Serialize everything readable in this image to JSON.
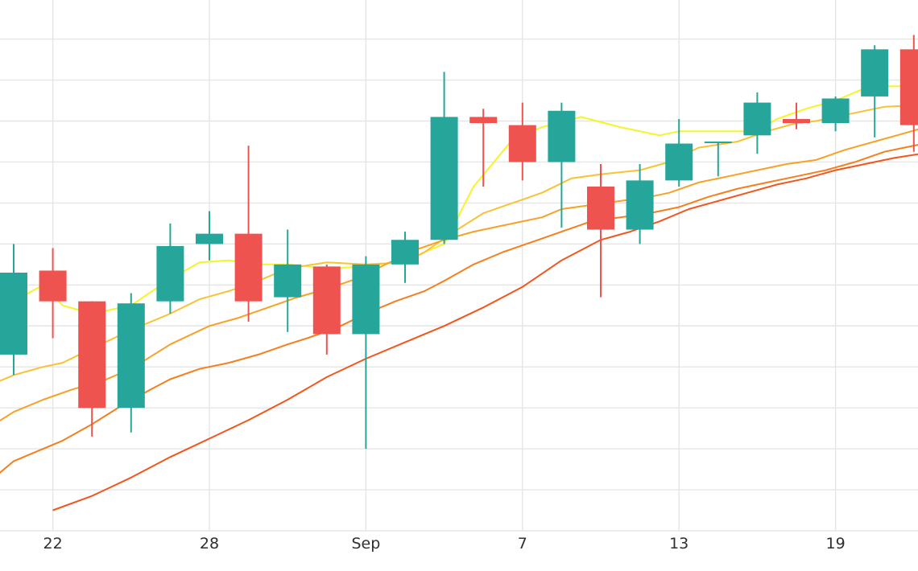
{
  "chart_data": {
    "type": "candlestick",
    "grid": true,
    "x_tick_labels": [
      {
        "label": "22",
        "day": 1
      },
      {
        "label": "28",
        "day": 5
      },
      {
        "label": "Sep",
        "day": 9
      },
      {
        "label": "7",
        "day": 13
      },
      {
        "label": "13",
        "day": 17
      },
      {
        "label": "19",
        "day": 21
      }
    ],
    "colors": {
      "up": "#26a69a",
      "down": "#ef5350",
      "grid": "#e5e5e5",
      "ma": [
        "#f7f32a",
        "#f9c235",
        "#f7a125",
        "#f57f1f",
        "#f2561d"
      ]
    },
    "candles": [
      {
        "day": 0,
        "open": 14.3,
        "high": 17.0,
        "low": 13.8,
        "close": 16.3
      },
      {
        "day": 1,
        "open": 16.35,
        "high": 16.9,
        "low": 14.7,
        "close": 15.6
      },
      {
        "day": 2,
        "open": 15.6,
        "high": 15.6,
        "low": 12.3,
        "close": 13.0
      },
      {
        "day": 3,
        "open": 13.0,
        "high": 15.8,
        "low": 12.4,
        "close": 15.55
      },
      {
        "day": 4,
        "open": 15.6,
        "high": 17.5,
        "low": 15.3,
        "close": 16.95
      },
      {
        "day": 5,
        "open": 17.0,
        "high": 17.8,
        "low": 16.6,
        "close": 17.25
      },
      {
        "day": 6,
        "open": 17.25,
        "high": 19.4,
        "low": 15.1,
        "close": 15.6
      },
      {
        "day": 7,
        "open": 15.7,
        "high": 17.35,
        "low": 14.85,
        "close": 16.5
      },
      {
        "day": 8,
        "open": 16.45,
        "high": 16.5,
        "low": 14.3,
        "close": 14.8
      },
      {
        "day": 9,
        "open": 14.8,
        "high": 16.7,
        "low": 12.0,
        "close": 16.5
      },
      {
        "day": 10,
        "open": 16.5,
        "high": 17.3,
        "low": 16.05,
        "close": 17.1
      },
      {
        "day": 11,
        "open": 17.1,
        "high": 21.2,
        "low": 17.0,
        "close": 20.1
      },
      {
        "day": 12,
        "open": 20.1,
        "high": 20.3,
        "low": 18.4,
        "close": 19.95
      },
      {
        "day": 13,
        "open": 19.9,
        "high": 20.45,
        "low": 18.55,
        "close": 19.0
      },
      {
        "day": 14,
        "open": 19.0,
        "high": 20.45,
        "low": 17.4,
        "close": 20.25
      },
      {
        "day": 15,
        "open": 18.4,
        "high": 18.95,
        "low": 15.7,
        "close": 17.35
      },
      {
        "day": 16,
        "open": 17.35,
        "high": 18.95,
        "low": 17.0,
        "close": 18.55
      },
      {
        "day": 17,
        "open": 18.55,
        "high": 20.05,
        "low": 18.4,
        "close": 19.45
      },
      {
        "day": 18,
        "open": 19.5,
        "high": 19.5,
        "low": 18.65,
        "close": 19.5
      },
      {
        "day": 19,
        "open": 19.65,
        "high": 20.7,
        "low": 19.2,
        "close": 20.45
      },
      {
        "day": 20,
        "open": 20.05,
        "high": 20.45,
        "low": 19.8,
        "close": 19.95
      },
      {
        "day": 21,
        "open": 19.95,
        "high": 20.6,
        "low": 19.75,
        "close": 20.55
      },
      {
        "day": 22,
        "open": 20.6,
        "high": 21.85,
        "low": 19.6,
        "close": 21.75
      },
      {
        "day": 23,
        "open": 21.75,
        "high": 22.1,
        "low": 19.25,
        "close": 19.9
      }
    ],
    "moving_averages": [
      {
        "values": [
          [
            -1.5,
            14.8
          ],
          [
            0,
            15.6
          ],
          [
            0.75,
            16.0
          ],
          [
            1.25,
            15.5
          ],
          [
            2,
            15.3
          ],
          [
            3,
            15.5
          ],
          [
            4,
            16.15
          ],
          [
            4.75,
            16.55
          ],
          [
            5.5,
            16.6
          ],
          [
            6.25,
            16.5
          ],
          [
            7,
            16.5
          ],
          [
            8,
            16.4
          ],
          [
            9,
            16.45
          ],
          [
            10,
            16.6
          ],
          [
            11,
            17.0
          ],
          [
            11.75,
            18.4
          ],
          [
            12.75,
            19.55
          ],
          [
            13.5,
            19.85
          ],
          [
            14.5,
            20.1
          ],
          [
            15.5,
            19.85
          ],
          [
            16.5,
            19.65
          ],
          [
            17,
            19.75
          ],
          [
            17.5,
            19.75
          ],
          [
            18.5,
            19.75
          ],
          [
            19,
            19.75
          ],
          [
            19.5,
            20.05
          ],
          [
            20.25,
            20.3
          ],
          [
            21,
            20.5
          ],
          [
            21.75,
            20.8
          ],
          [
            22.25,
            20.85
          ],
          [
            22.75,
            20.85
          ],
          [
            23.5,
            20.9
          ]
        ]
      },
      {
        "values": [
          [
            -1.5,
            13.0
          ],
          [
            -0.5,
            13.6
          ],
          [
            0,
            13.8
          ],
          [
            0.75,
            14.0
          ],
          [
            1.25,
            14.1
          ],
          [
            2,
            14.45
          ],
          [
            3,
            14.9
          ],
          [
            4,
            15.3
          ],
          [
            4.75,
            15.65
          ],
          [
            5.5,
            15.85
          ],
          [
            6.25,
            16.1
          ],
          [
            7,
            16.4
          ],
          [
            8,
            16.55
          ],
          [
            9,
            16.5
          ],
          [
            10,
            16.55
          ],
          [
            10.5,
            16.8
          ],
          [
            11.25,
            17.3
          ],
          [
            12,
            17.75
          ],
          [
            12.75,
            18.0
          ],
          [
            13.5,
            18.25
          ],
          [
            14.25,
            18.6
          ],
          [
            15,
            18.7
          ],
          [
            16,
            18.8
          ],
          [
            16.75,
            19.0
          ],
          [
            17.5,
            19.35
          ],
          [
            18.5,
            19.5
          ],
          [
            19.25,
            19.75
          ],
          [
            20,
            19.95
          ],
          [
            20.5,
            20.0
          ],
          [
            21,
            20.1
          ],
          [
            21.75,
            20.25
          ],
          [
            22.25,
            20.35
          ],
          [
            23.5,
            20.4
          ]
        ]
      },
      {
        "values": [
          [
            -1.5,
            12.05
          ],
          [
            -0.5,
            12.6
          ],
          [
            0,
            12.9
          ],
          [
            0.75,
            13.2
          ],
          [
            1.5,
            13.45
          ],
          [
            2.25,
            13.65
          ],
          [
            3,
            13.95
          ],
          [
            4,
            14.55
          ],
          [
            5,
            15.0
          ],
          [
            5.75,
            15.2
          ],
          [
            6.5,
            15.45
          ],
          [
            7.25,
            15.7
          ],
          [
            8,
            15.9
          ],
          [
            8.75,
            16.15
          ],
          [
            9.5,
            16.5
          ],
          [
            10.25,
            16.85
          ],
          [
            11,
            17.1
          ],
          [
            11.75,
            17.3
          ],
          [
            12.5,
            17.45
          ],
          [
            13.5,
            17.65
          ],
          [
            14,
            17.85
          ],
          [
            14.75,
            17.95
          ],
          [
            15.5,
            18.05
          ],
          [
            16.25,
            18.15
          ],
          [
            16.75,
            18.25
          ],
          [
            17.5,
            18.5
          ],
          [
            18.25,
            18.65
          ],
          [
            19,
            18.8
          ],
          [
            19.75,
            18.95
          ],
          [
            20.5,
            19.05
          ],
          [
            21.25,
            19.3
          ],
          [
            22,
            19.5
          ],
          [
            22.75,
            19.7
          ],
          [
            23.5,
            19.9
          ]
        ]
      },
      {
        "values": [
          [
            -1.5,
            10.8
          ],
          [
            -0.5,
            11.3
          ],
          [
            0,
            11.7
          ],
          [
            0.75,
            12.0
          ],
          [
            1.25,
            12.2
          ],
          [
            2,
            12.6
          ],
          [
            2.75,
            13.05
          ],
          [
            3.5,
            13.45
          ],
          [
            4,
            13.7
          ],
          [
            4.75,
            13.95
          ],
          [
            5.5,
            14.1
          ],
          [
            6.25,
            14.3
          ],
          [
            7,
            14.55
          ],
          [
            7.5,
            14.7
          ],
          [
            8.25,
            14.95
          ],
          [
            9,
            15.3
          ],
          [
            9.75,
            15.6
          ],
          [
            10.5,
            15.85
          ],
          [
            11,
            16.1
          ],
          [
            11.75,
            16.5
          ],
          [
            12.5,
            16.8
          ],
          [
            13.25,
            17.05
          ],
          [
            14,
            17.3
          ],
          [
            14.75,
            17.55
          ],
          [
            15.5,
            17.65
          ],
          [
            16.25,
            17.75
          ],
          [
            17,
            17.9
          ],
          [
            17.75,
            18.15
          ],
          [
            18.5,
            18.35
          ],
          [
            19.25,
            18.5
          ],
          [
            20,
            18.65
          ],
          [
            20.75,
            18.8
          ],
          [
            21.5,
            19.0
          ],
          [
            22.25,
            19.25
          ],
          [
            23,
            19.4
          ],
          [
            23.5,
            19.5
          ]
        ]
      },
      {
        "values": [
          [
            1,
            10.5
          ],
          [
            2,
            10.85
          ],
          [
            3,
            11.3
          ],
          [
            4,
            11.8
          ],
          [
            5,
            12.25
          ],
          [
            6,
            12.7
          ],
          [
            7,
            13.2
          ],
          [
            8,
            13.75
          ],
          [
            9,
            14.2
          ],
          [
            10,
            14.6
          ],
          [
            11,
            15.0
          ],
          [
            12,
            15.45
          ],
          [
            13,
            15.95
          ],
          [
            14,
            16.6
          ],
          [
            15,
            17.1
          ],
          [
            15.75,
            17.3
          ],
          [
            16.5,
            17.55
          ],
          [
            17.25,
            17.85
          ],
          [
            18,
            18.05
          ],
          [
            18.75,
            18.25
          ],
          [
            19.5,
            18.45
          ],
          [
            20.25,
            18.6
          ],
          [
            21,
            18.8
          ],
          [
            21.75,
            18.95
          ],
          [
            22.5,
            19.1
          ],
          [
            23.5,
            19.25
          ]
        ]
      }
    ]
  }
}
